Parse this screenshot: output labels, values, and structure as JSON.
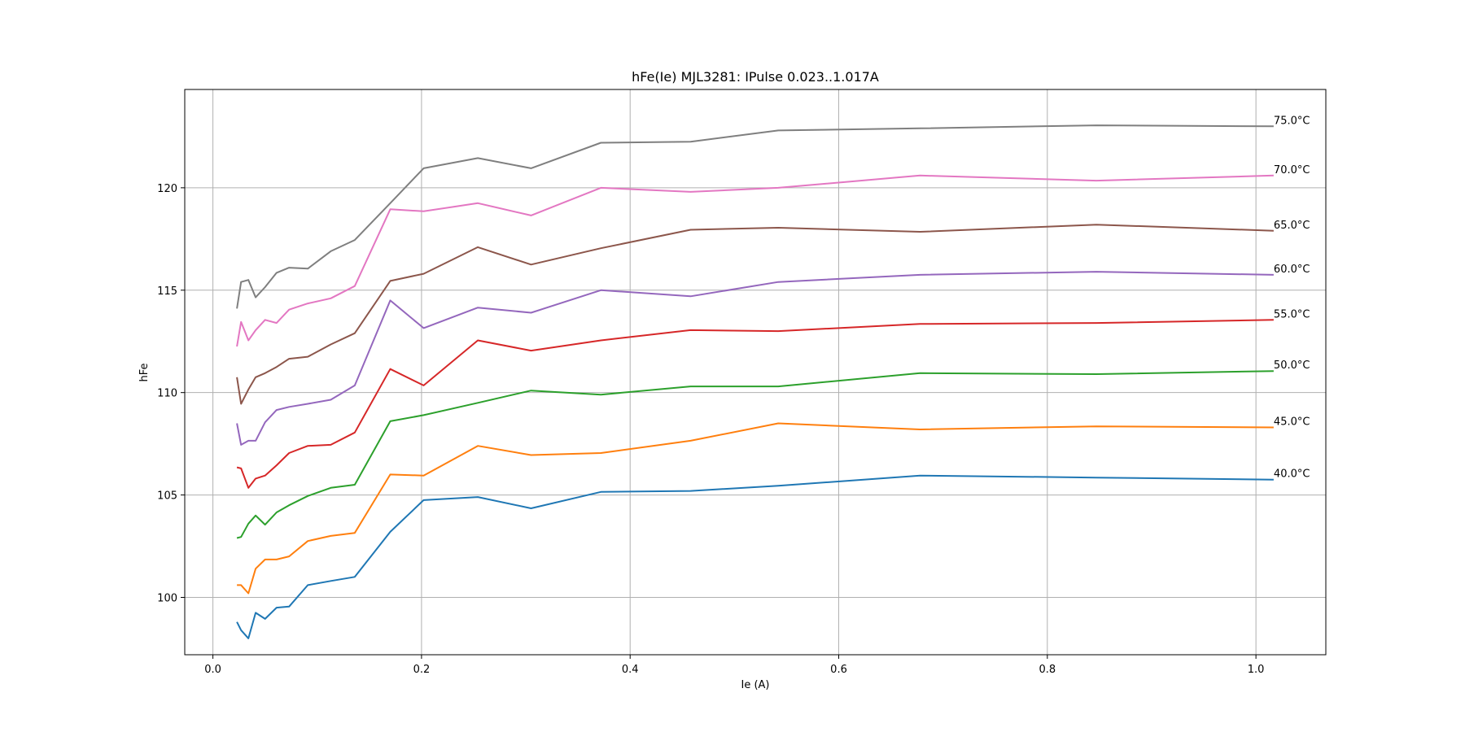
{
  "chart_data": {
    "type": "line",
    "title": "hFe(Ie) MJL3281: IPulse 0.023..1.017A",
    "xlabel": "Ie (A)",
    "ylabel": "hFe",
    "xlim": [
      -0.027,
      1.067
    ],
    "ylim": [
      97.2,
      124.8
    ],
    "xticks": [
      0.0,
      0.2,
      0.4,
      0.6,
      0.8,
      1.0
    ],
    "xtick_labels": [
      "0.0",
      "0.2",
      "0.4",
      "0.6",
      "0.8",
      "1.0"
    ],
    "yticks": [
      100,
      105,
      110,
      115,
      120
    ],
    "ytick_labels": [
      "100",
      "105",
      "110",
      "115",
      "120"
    ],
    "grid": true,
    "legend": "inline labels at right end of each line",
    "x": [
      0.023,
      0.027,
      0.034,
      0.041,
      0.05,
      0.061,
      0.073,
      0.091,
      0.113,
      0.136,
      0.17,
      0.202,
      0.254,
      0.305,
      0.372,
      0.458,
      0.542,
      0.678,
      0.847,
      1.017
    ],
    "series": [
      {
        "name": "40.0°C",
        "color": "#1f77b4",
        "values": [
          98.8,
          98.4,
          98.0,
          99.25,
          98.95,
          99.5,
          99.55,
          100.6,
          100.8,
          101.0,
          103.2,
          104.75,
          104.9,
          104.35,
          105.15,
          105.2,
          105.45,
          105.95,
          105.85,
          105.75
        ]
      },
      {
        "name": "45.0°C",
        "color": "#ff7f0e",
        "values": [
          100.6,
          100.6,
          100.2,
          101.4,
          101.85,
          101.85,
          102.0,
          102.75,
          103.0,
          103.15,
          106.0,
          105.95,
          107.4,
          106.95,
          107.05,
          107.65,
          108.5,
          108.2,
          108.35,
          108.3
        ]
      },
      {
        "name": "50.0°C",
        "color": "#2ca02c",
        "values": [
          102.9,
          102.95,
          103.6,
          104.0,
          103.55,
          104.15,
          104.5,
          104.95,
          105.35,
          105.5,
          108.6,
          108.9,
          109.5,
          110.1,
          109.9,
          110.3,
          110.3,
          110.95,
          110.9,
          111.05
        ]
      },
      {
        "name": "55.0°C",
        "color": "#d62728",
        "values": [
          106.35,
          106.3,
          105.35,
          105.8,
          105.95,
          106.45,
          107.05,
          107.4,
          107.45,
          108.05,
          111.15,
          110.35,
          112.55,
          112.05,
          112.55,
          113.05,
          113.0,
          113.35,
          113.4,
          113.55
        ]
      },
      {
        "name": "60.0°C",
        "color": "#9467bd",
        "values": [
          108.5,
          107.45,
          107.65,
          107.65,
          108.55,
          109.15,
          109.3,
          109.45,
          109.65,
          110.35,
          114.5,
          113.15,
          114.15,
          113.9,
          115.0,
          114.7,
          115.4,
          115.75,
          115.9,
          115.75
        ]
      },
      {
        "name": "65.0°C",
        "color": "#8c564b",
        "values": [
          110.75,
          109.45,
          110.15,
          110.75,
          110.95,
          111.25,
          111.65,
          111.75,
          112.35,
          112.9,
          115.45,
          115.8,
          117.1,
          116.25,
          117.05,
          117.95,
          118.05,
          117.85,
          118.2,
          117.9
        ]
      },
      {
        "name": "70.0°C",
        "color": "#e377c2",
        "values": [
          112.25,
          113.45,
          112.55,
          113.05,
          113.55,
          113.4,
          114.05,
          114.35,
          114.6,
          115.2,
          118.95,
          118.85,
          119.25,
          118.65,
          120.0,
          119.8,
          120.0,
          120.6,
          120.35,
          120.6
        ]
      },
      {
        "name": "75.0°C",
        "color": "#7f7f7f",
        "values": [
          114.1,
          115.4,
          115.5,
          114.65,
          115.15,
          115.85,
          116.1,
          116.05,
          116.9,
          117.45,
          119.25,
          120.95,
          121.45,
          120.95,
          122.2,
          122.25,
          122.8,
          122.9,
          123.05,
          123.0
        ]
      }
    ]
  }
}
